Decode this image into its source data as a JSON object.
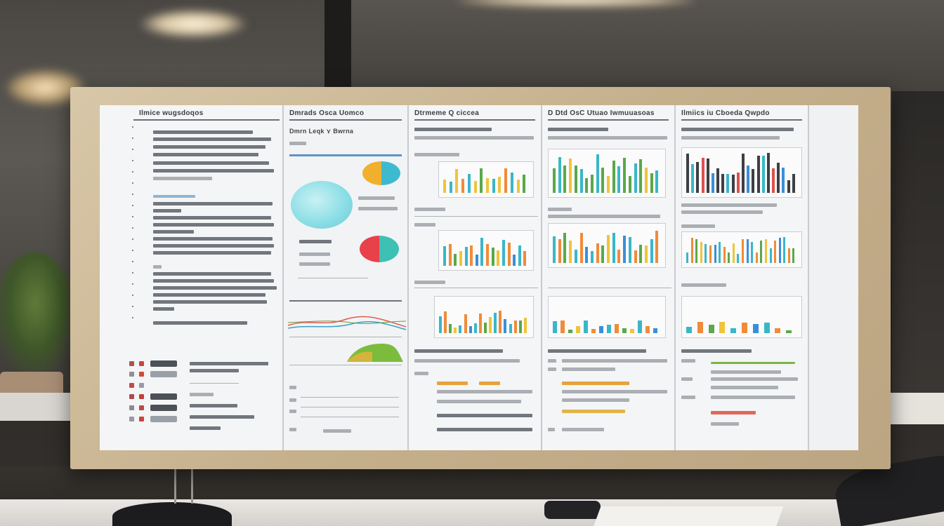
{
  "scene": {
    "description_domain": "photo of a monitor showing a dashboard",
    "monitor": {
      "panels": [
        {
          "id": "panel-1",
          "title": "Ilmice wugsdoqos"
        },
        {
          "id": "panel-2",
          "title": "Dmrads Osca Uomco",
          "subtitle": "Dmrn Leqk  ⋎  Bwrna"
        },
        {
          "id": "panel-3",
          "title": "Dtrmeme  Q ciccea"
        },
        {
          "id": "panel-4",
          "title": "D  Dtd  OsC Utuao  Iwmuuasoas"
        },
        {
          "id": "panel-5",
          "title": "Ilmiics  iu  Cboeda  Qwpdo"
        }
      ]
    },
    "colors": {
      "frame": "#c9b590",
      "screen": "#eceef0",
      "bar_yellow": "#f0c43a",
      "bar_teal": "#39b7c8",
      "bar_green": "#5aa84a",
      "bar_orange": "#f08b3a",
      "bar_red": "#d9534f",
      "bar_dark": "#3e3f45",
      "bar_blue": "#3a8fd9"
    }
  }
}
